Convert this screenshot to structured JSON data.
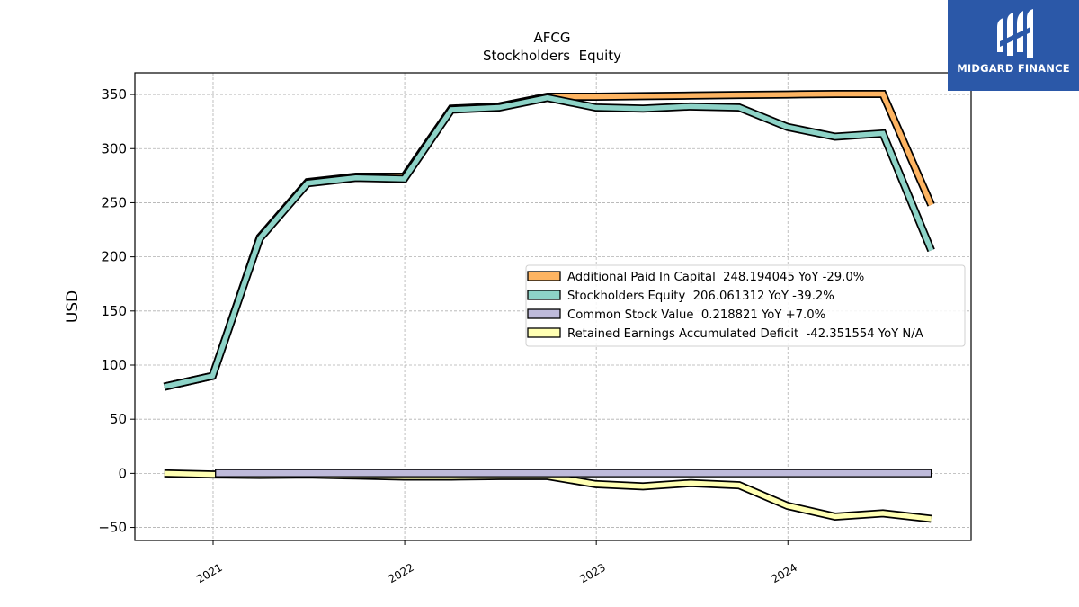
{
  "logo": {
    "name": "MIDGARD FINANCE"
  },
  "chart_data": {
    "type": "line",
    "title": "AFCG",
    "subtitle": "Stockholders  Equity",
    "ylabel": "USD",
    "xlabel": "",
    "ylim": [
      -62,
      370
    ],
    "xlim": [
      "2020-08-05",
      "2024-12-15"
    ],
    "grid": true,
    "legend_position": "center-right",
    "y_ticks": [
      350,
      300,
      250,
      200,
      150,
      100,
      50,
      0,
      -50
    ],
    "y_tick_labels": [
      "350",
      "300",
      "250",
      "200",
      "150",
      "100",
      "50",
      "0",
      "−50"
    ],
    "x_ticks": [
      "2021-01-01",
      "2022-01-01",
      "2023-01-01",
      "2024-01-01"
    ],
    "x_tick_labels": [
      "2021",
      "2022",
      "2023",
      "2024"
    ],
    "x": [
      "2020-09-30",
      "2020-12-31",
      "2021-03-31",
      "2021-06-30",
      "2021-09-30",
      "2021-12-31",
      "2022-03-31",
      "2022-06-30",
      "2022-09-30",
      "2022-12-31",
      "2023-03-31",
      "2023-06-30",
      "2023-09-30",
      "2023-12-31",
      "2024-03-31",
      "2024-06-30",
      "2024-09-30"
    ],
    "series": [
      {
        "name": "Additional Paid In Capital  248.194045 YoY -29.0%",
        "color": "#fdb462",
        "values": [
          80,
          90,
          218,
          269,
          274,
          274,
          337,
          339,
          348,
          348,
          348.5,
          349,
          349.5,
          350,
          350.5,
          350.5,
          248
        ]
      },
      {
        "name": "Stockholders Equity  206.061312 YoY -39.2%",
        "color": "#8dd3c7",
        "values": [
          80,
          90,
          217,
          268,
          273,
          272,
          336,
          338,
          347,
          338,
          337,
          339,
          338,
          320,
          311,
          314,
          206
        ]
      },
      {
        "name": "Common Stock Value  0.218821 YoY +7.0%",
        "color": "#bebada",
        "values": [
          0.2,
          0.2,
          0.2,
          0.2,
          0.2,
          0.2,
          0.2,
          0.2,
          0.2,
          0.2,
          0.2,
          0.2,
          0.2,
          0.2,
          0.2,
          0.2,
          0.2
        ]
      },
      {
        "name": "Retained Earnings Accumulated Deficit  -42.351554 YoY N/A",
        "color": "#ffffb3",
        "values": [
          0,
          -1,
          -1.5,
          -1,
          -2,
          -3,
          -3,
          -2.5,
          -2.5,
          -10,
          -12,
          -9,
          -11,
          -30,
          -40,
          -37,
          -42
        ]
      }
    ]
  }
}
